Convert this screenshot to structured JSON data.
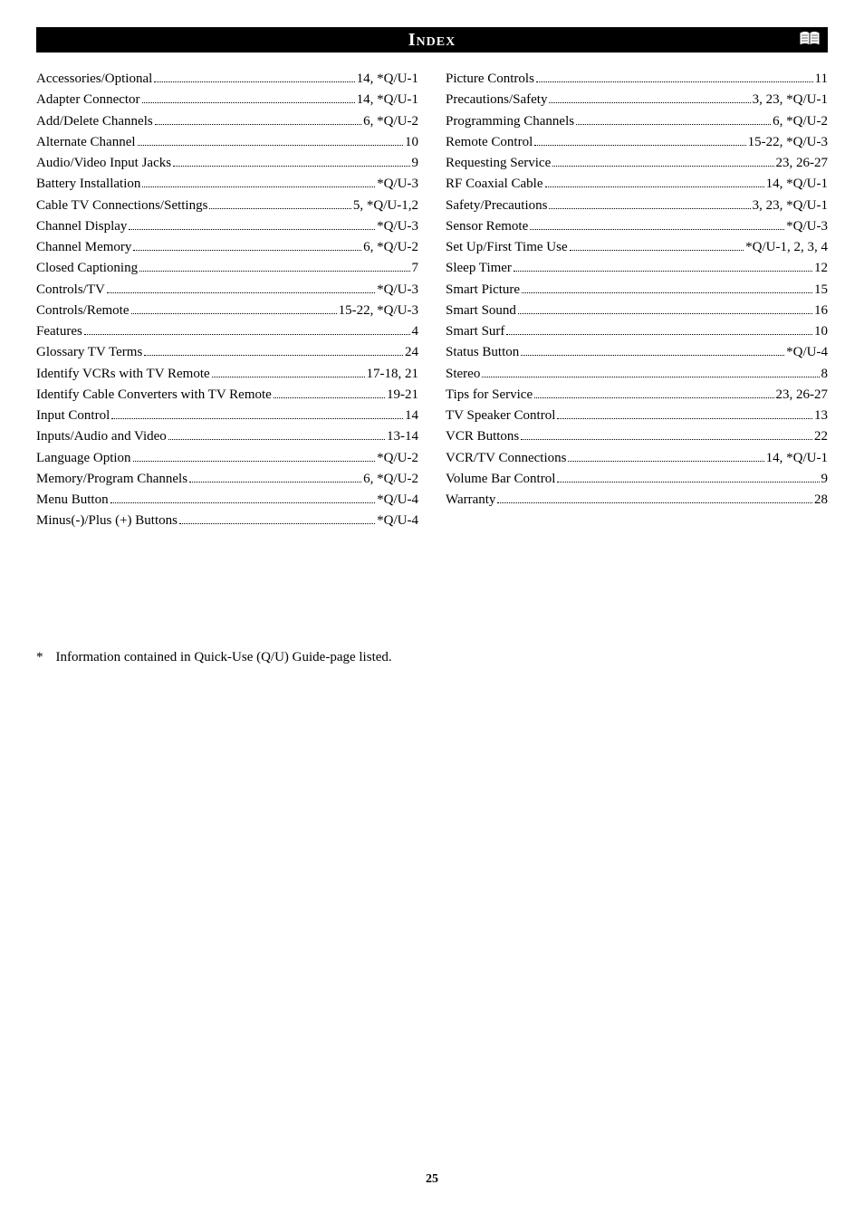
{
  "title": "Index",
  "pageNumber": "25",
  "footnote": {
    "mark": "*",
    "text": "Information contained in Quick-Use (Q/U) Guide-page listed."
  },
  "leftColumn": [
    {
      "term": "Accessories/Optional",
      "page": "14, *Q/U-1"
    },
    {
      "term": "Adapter Connector",
      "page": "14, *Q/U-1"
    },
    {
      "term": "Add/Delete Channels",
      "page": "6, *Q/U-2"
    },
    {
      "term": "Alternate Channel",
      "page": "10"
    },
    {
      "term": "Audio/Video Input Jacks",
      "page": "9"
    },
    {
      "term": "Battery Installation",
      "page": "*Q/U-3"
    },
    {
      "term": "Cable TV Connections/Settings",
      "page": "5, *Q/U-1,2"
    },
    {
      "term": "Channel  Display",
      "page": "*Q/U-3"
    },
    {
      "term": "Channel Memory",
      "page": "6, *Q/U-2"
    },
    {
      "term": "Closed Captioning",
      "page": "7"
    },
    {
      "term": "Controls/TV",
      "page": "*Q/U-3"
    },
    {
      "term": "Controls/Remote",
      "page": "15-22, *Q/U-3"
    },
    {
      "term": "Features",
      "page": "4"
    },
    {
      "term": "Glossary TV Terms",
      "page": "24"
    },
    {
      "term": "Identify VCRs with TV Remote",
      "page": "17-18, 21"
    },
    {
      "term": "Identify Cable Converters with TV Remote",
      "page": "19-21"
    },
    {
      "term": "Input Control",
      "page": "14"
    },
    {
      "term": "Inputs/Audio and Video",
      "page": "13-14"
    },
    {
      "term": "Language Option",
      "page": "*Q/U-2"
    },
    {
      "term": "Memory/Program Channels",
      "page": "6, *Q/U-2"
    },
    {
      "term": "Menu Button",
      "page": "*Q/U-4"
    },
    {
      "term": "Minus(-)/Plus (+) Buttons",
      "page": "*Q/U-4"
    }
  ],
  "rightColumn": [
    {
      "term": "Picture Controls",
      "page": "11"
    },
    {
      "term": "Precautions/Safety",
      "page": "3, 23, *Q/U-1"
    },
    {
      "term": "Programming Channels",
      "page": "6, *Q/U-2"
    },
    {
      "term": "Remote Control",
      "page": "15-22, *Q/U-3"
    },
    {
      "term": "Requesting Service",
      "page": "23, 26-27"
    },
    {
      "term": "RF Coaxial Cable",
      "page": "14, *Q/U-1"
    },
    {
      "term": "Safety/Precautions",
      "page": "3, 23, *Q/U-1"
    },
    {
      "term": "Sensor Remote",
      "page": "*Q/U-3"
    },
    {
      "term": "Set Up/First Time Use",
      "page": "*Q/U-1, 2, 3, 4"
    },
    {
      "term": "Sleep Timer",
      "page": "12"
    },
    {
      "term": "Smart Picture",
      "page": "15"
    },
    {
      "term": "Smart Sound",
      "page": "16"
    },
    {
      "term": "Smart Surf",
      "page": "10"
    },
    {
      "term": "Status Button",
      "page": "*Q/U-4"
    },
    {
      "term": "Stereo",
      "page": "8"
    },
    {
      "term": "Tips for Service",
      "page": "23, 26-27"
    },
    {
      "term": "TV Speaker Control",
      "page": "13"
    },
    {
      "term": "VCR Buttons",
      "page": "22"
    },
    {
      "term": "VCR/TV Connections",
      "page": "14, *Q/U-1"
    },
    {
      "term": "Volume Bar Control",
      "page": "9"
    },
    {
      "term": "Warranty",
      "page": "28"
    }
  ]
}
